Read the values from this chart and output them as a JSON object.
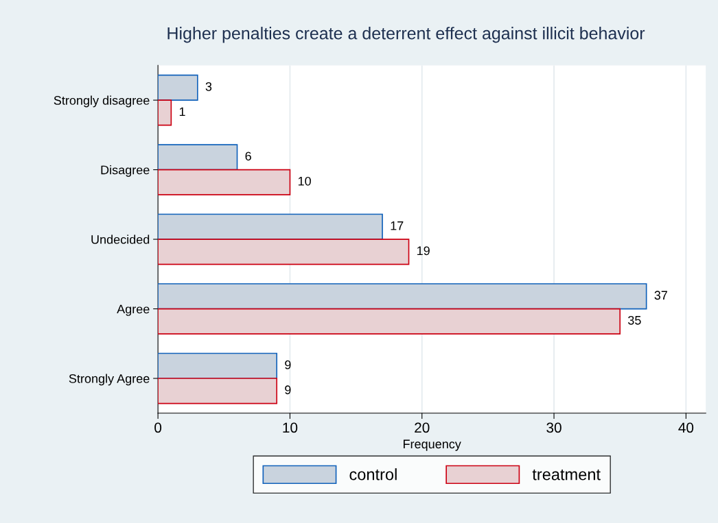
{
  "chart_data": {
    "type": "bar",
    "orientation": "horizontal",
    "title": "Higher penalties create a deterrent effect against illicit behavior",
    "xlabel": "Frequency",
    "categories": [
      "Strongly disagree",
      "Disagree",
      "Undecided",
      "Agree",
      "Strongly Agree"
    ],
    "series": [
      {
        "name": "control",
        "color": "#c9d3de",
        "values": [
          3,
          6,
          17,
          37,
          9
        ]
      },
      {
        "name": "treatment",
        "color": "#e8d1d3",
        "values": [
          1,
          10,
          19,
          35,
          9
        ]
      }
    ],
    "xlim": [
      0,
      41.5
    ],
    "xticks": [
      0,
      10,
      20,
      30,
      40
    ],
    "grid": "x",
    "legend": "bottom",
    "data_labels": true
  }
}
